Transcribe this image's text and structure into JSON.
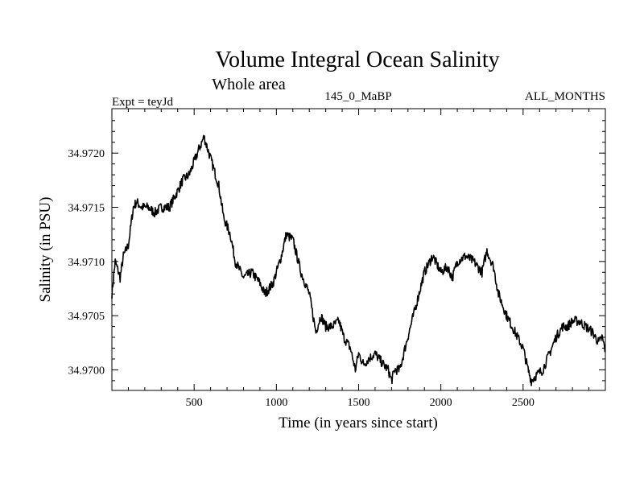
{
  "chart_data": {
    "type": "line",
    "title": "Volume Integral Ocean Salinity",
    "subtitle": "Whole area",
    "label_left": "Expt = teyJd",
    "label_center": "145_0_MaBP",
    "label_right": "ALL_MONTHS",
    "xlabel": "Time (in years since start)",
    "ylabel": "Salinity (in PSU)",
    "xlim": [
      0,
      3000
    ],
    "ylim": [
      34.96981,
      34.97241
    ],
    "x_ticks": [
      500,
      1000,
      1500,
      2000,
      2500
    ],
    "x_tick_labels": [
      "500",
      "1000",
      "1500",
      "2000",
      "2500"
    ],
    "y_ticks": [
      34.97,
      34.9705,
      34.971,
      34.9715,
      34.972
    ],
    "y_tick_labels": [
      "34.9700",
      "34.9705",
      "34.9710",
      "34.9715",
      "34.9720"
    ],
    "color": "#000000",
    "series": [
      {
        "name": "Salinity",
        "x": [
          0,
          20,
          50,
          70,
          100,
          130,
          150,
          180,
          220,
          260,
          300,
          350,
          400,
          430,
          470,
          520,
          560,
          580,
          610,
          650,
          680,
          720,
          750,
          800,
          850,
          900,
          930,
          980,
          1030,
          1060,
          1100,
          1150,
          1200,
          1240,
          1270,
          1300,
          1340,
          1380,
          1410,
          1450,
          1480,
          1500,
          1530,
          1560,
          1600,
          1650,
          1680,
          1700,
          1720,
          1750,
          1790,
          1850,
          1900,
          1950,
          2000,
          2040,
          2070,
          2100,
          2150,
          2200,
          2250,
          2280,
          2320,
          2350,
          2400,
          2450,
          2500,
          2530,
          2550,
          2580,
          2620,
          2660,
          2700,
          2740,
          2770,
          2800,
          2840,
          2880,
          2920,
          2960,
          2980,
          3000
        ],
        "y": [
          34.9707,
          34.971,
          34.97085,
          34.97105,
          34.97115,
          34.9715,
          34.97155,
          34.9715,
          34.9715,
          34.97145,
          34.9715,
          34.9715,
          34.97165,
          34.97175,
          34.9718,
          34.972,
          34.97215,
          34.97205,
          34.9719,
          34.9717,
          34.9714,
          34.97125,
          34.971,
          34.97085,
          34.9709,
          34.9708,
          34.9707,
          34.9708,
          34.97105,
          34.97125,
          34.9712,
          34.9709,
          34.9707,
          34.97035,
          34.9705,
          34.9704,
          34.9704,
          34.97045,
          34.9703,
          34.9702,
          34.97,
          34.97015,
          34.97005,
          34.9701,
          34.97015,
          34.97005,
          34.97,
          34.9699,
          34.97,
          34.97,
          34.97025,
          34.9706,
          34.9709,
          34.97105,
          34.9709,
          34.97095,
          34.97085,
          34.971,
          34.97105,
          34.971,
          34.9709,
          34.9711,
          34.97095,
          34.9707,
          34.9705,
          34.97035,
          34.9702,
          34.97,
          34.9699,
          34.96995,
          34.97,
          34.97015,
          34.9703,
          34.9704,
          34.9704,
          34.97045,
          34.97045,
          34.9704,
          34.97035,
          34.97025,
          34.9703,
          34.97018
        ]
      }
    ]
  }
}
